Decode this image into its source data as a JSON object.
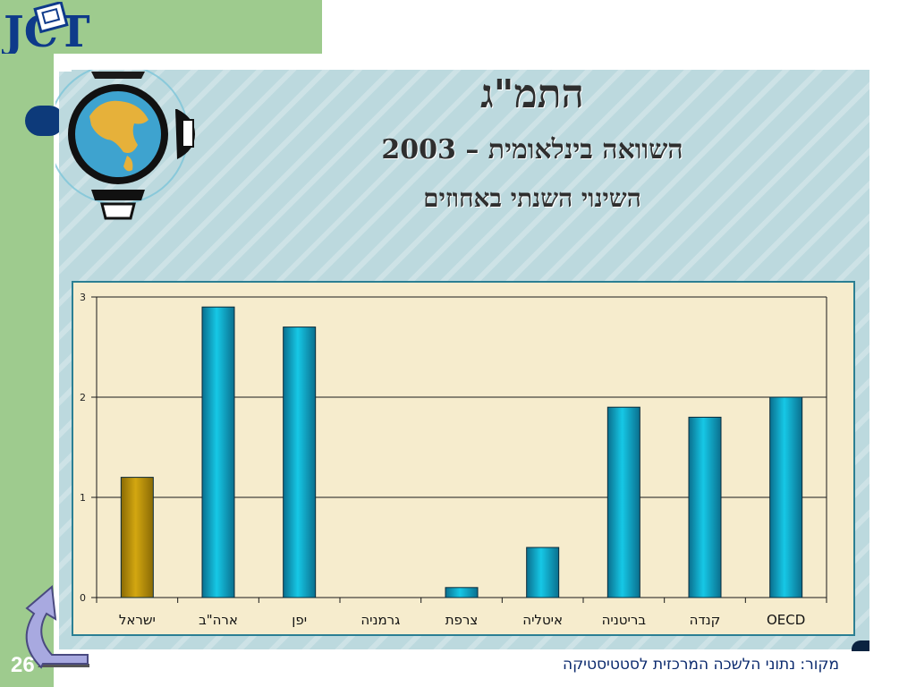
{
  "logo": {
    "text": "JCT"
  },
  "title": {
    "line1": "התמ\"ג",
    "line2": "השוואה בינלאומית – 2003",
    "line3": "השינוי השנתי באחוזים"
  },
  "source": "מקור: נתוני הלשכה המרכזית לסטטיסטיקה",
  "slide_number": "26",
  "colors": {
    "background_green": "#9ecb8e",
    "bar_highlight": "#d3a710",
    "bar_default": "#16c8e6",
    "chart_bg": "#f6eccd",
    "title": "#2e2e2e"
  },
  "icons": [
    "globe-icon",
    "return-arrow-icon"
  ],
  "chart_data": {
    "type": "bar",
    "title": "",
    "xlabel": "",
    "ylabel": "",
    "categories": [
      "ישראל",
      "ארה\"ב",
      "יפן",
      "גרמניה",
      "צרפת",
      "איטליה",
      "בריטניה",
      "קנדה",
      "OECD"
    ],
    "values": [
      1.2,
      2.9,
      2.7,
      0,
      0.1,
      0.5,
      1.9,
      1.8,
      2.0
    ],
    "highlight_index": 0,
    "ylim": [
      0,
      3
    ],
    "yticks": [
      0,
      1,
      2,
      3
    ],
    "grid": true,
    "legend": "none"
  }
}
